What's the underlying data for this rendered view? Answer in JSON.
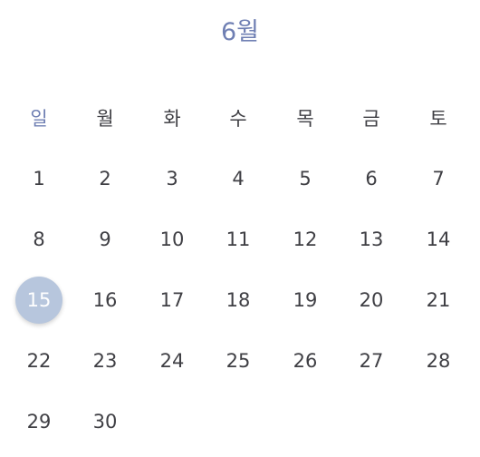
{
  "header": {
    "month_label": "6월"
  },
  "weekdays": [
    "일",
    "월",
    "화",
    "수",
    "목",
    "금",
    "토"
  ],
  "weeks": [
    [
      "1",
      "2",
      "3",
      "4",
      "5",
      "6",
      "7"
    ],
    [
      "8",
      "9",
      "10",
      "11",
      "12",
      "13",
      "14"
    ],
    [
      "15",
      "16",
      "17",
      "18",
      "19",
      "20",
      "21"
    ],
    [
      "22",
      "23",
      "24",
      "25",
      "26",
      "27",
      "28"
    ],
    [
      "29",
      "30"
    ]
  ],
  "selected_day": "15",
  "colors": {
    "accent": "#6f7fb3",
    "selected_bg": "#b7c6dd",
    "text": "#3f3f44"
  }
}
